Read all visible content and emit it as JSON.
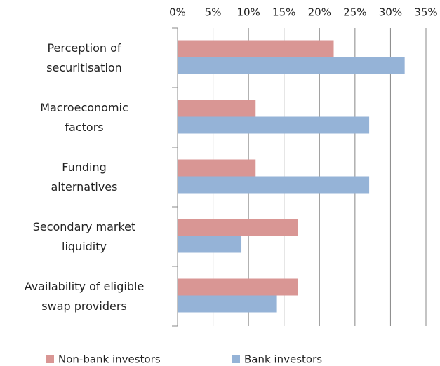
{
  "chart_data": {
    "type": "hbar",
    "categories": [
      "Perception of\nsecuritisation",
      "Macroeconomic\nfactors",
      "Funding\nalternatives",
      "Secondary market\nliquidity",
      "Availability of eligible\nswap providers"
    ],
    "series": [
      {
        "name": "Non-bank investors",
        "color": "#d99694",
        "values": [
          22,
          11,
          11,
          17,
          17
        ]
      },
      {
        "name": "Bank investors",
        "color": "#95b3d7",
        "values": [
          32,
          27,
          27,
          9,
          14
        ]
      }
    ],
    "xlim": [
      0,
      35
    ],
    "xticks": [
      {
        "value": 0,
        "label": "0%"
      },
      {
        "value": 5,
        "label": "5%"
      },
      {
        "value": 10,
        "label": "10%"
      },
      {
        "value": 15,
        "label": "15%"
      },
      {
        "value": 20,
        "label": "20%"
      },
      {
        "value": 25,
        "label": "25%"
      },
      {
        "value": 30,
        "label": "30%"
      },
      {
        "value": 35,
        "label": "35%"
      }
    ],
    "grid": true,
    "legend": "bottom"
  }
}
